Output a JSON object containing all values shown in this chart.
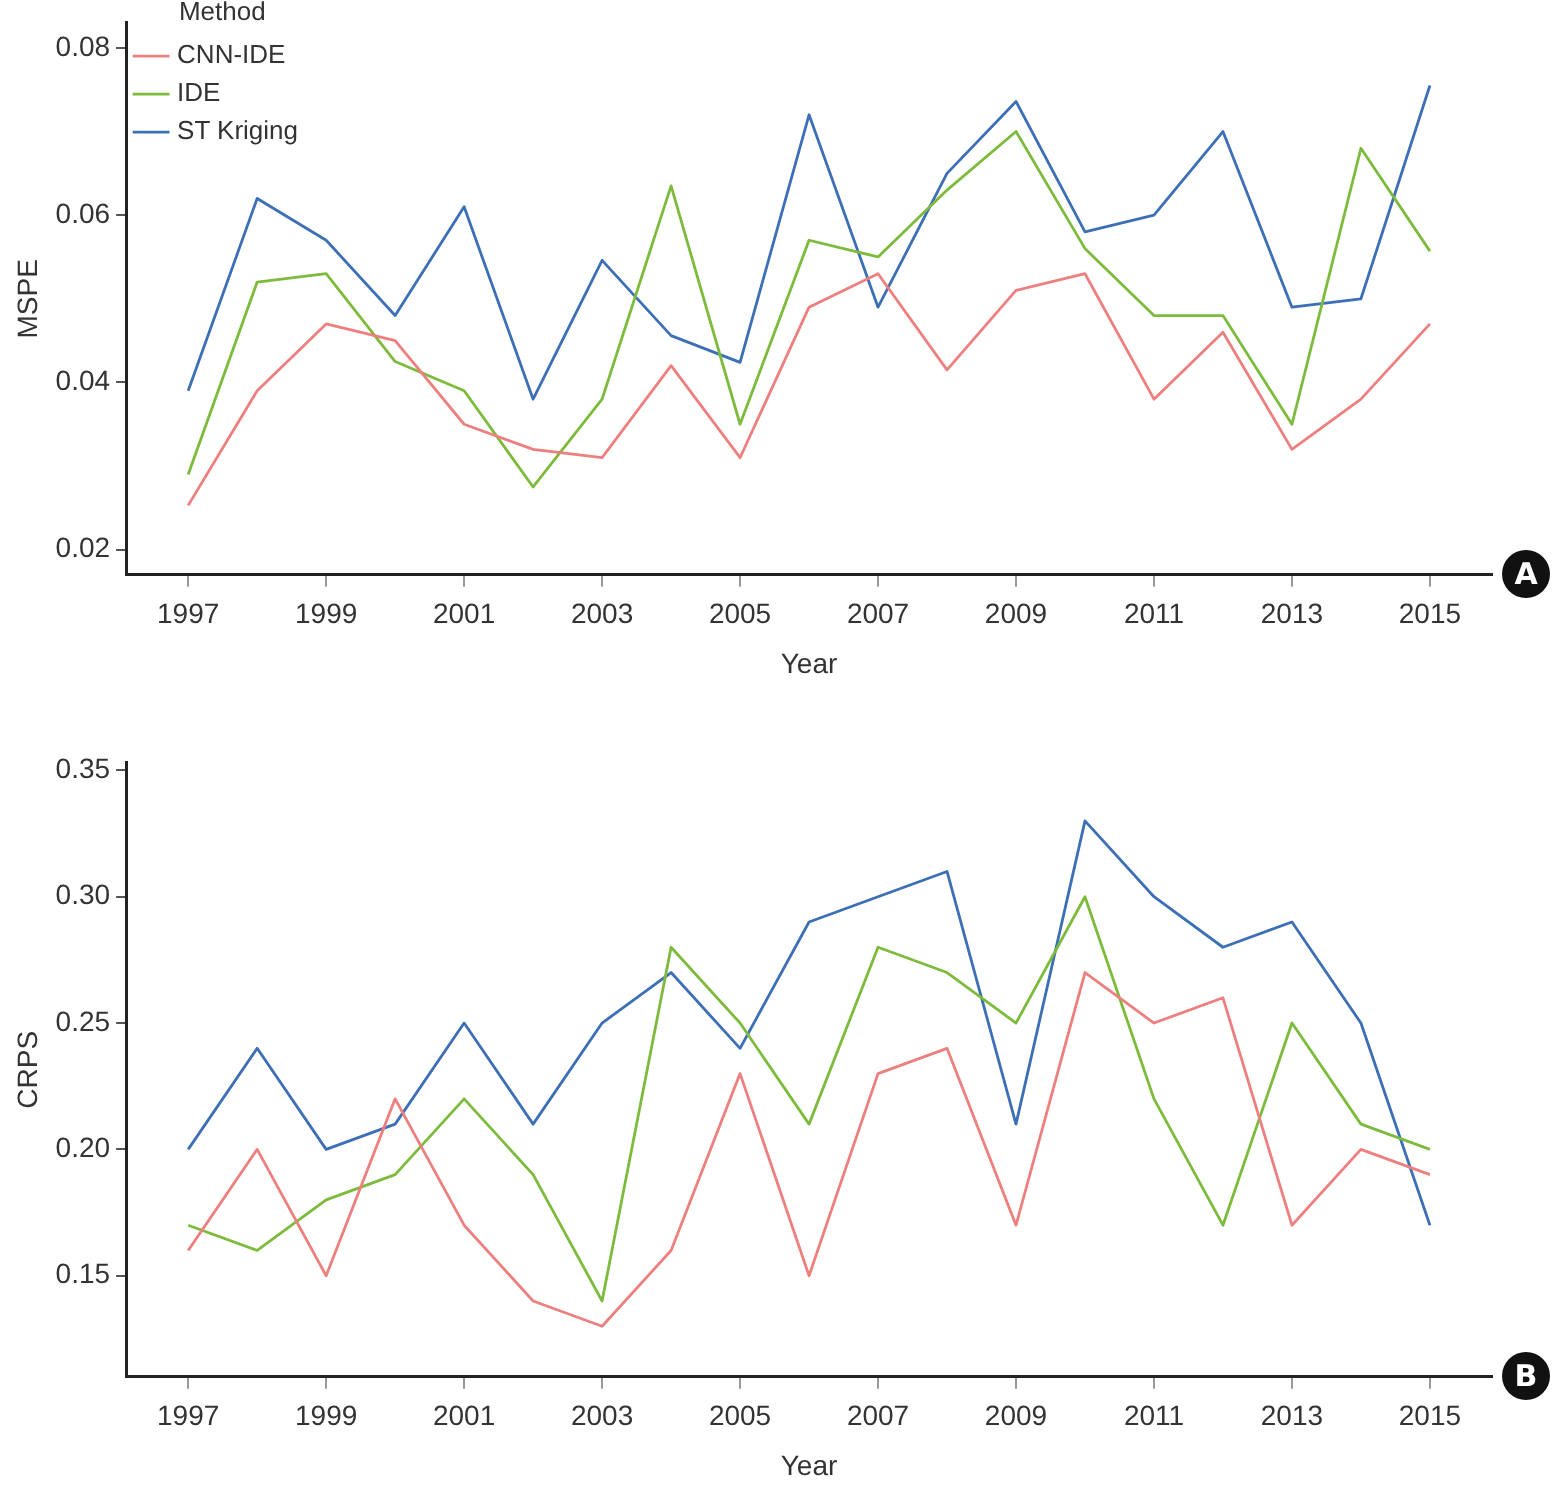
{
  "chart_data": [
    {
      "type": "line",
      "xlabel": "Year",
      "ylabel": "MSPE",
      "legend": "top left",
      "legend_title": "Method",
      "grid": false,
      "marker": "none",
      "line_style": "solid",
      "x": [
        1997,
        1998,
        1999,
        2000,
        2001,
        2002,
        2003,
        2004,
        2005,
        2006,
        2007,
        2008,
        2009,
        2010,
        2011,
        2012,
        2013,
        2014,
        2015
      ],
      "xlim": [
        1996.1,
        2015.9
      ],
      "xticks": [
        1997,
        1999,
        2001,
        2003,
        2005,
        2007,
        2009,
        2011,
        2013,
        2015
      ],
      "ylim": [
        0.017,
        0.083
      ],
      "yticks": [
        0.02,
        0.04,
        0.06,
        0.08
      ],
      "series": [
        {
          "name": "CNN-IDE",
          "color": "#ee7f7f",
          "values": [
            0.0253,
            0.039,
            0.047,
            0.045,
            0.035,
            0.032,
            0.031,
            0.042,
            0.031,
            0.049,
            0.053,
            0.0415,
            0.051,
            0.053,
            0.038,
            0.046,
            0.032,
            0.038,
            0.047
          ]
        },
        {
          "name": "IDE",
          "color": "#7dbb3c",
          "values": [
            0.029,
            0.052,
            0.053,
            0.0425,
            0.039,
            0.0275,
            0.038,
            0.0635,
            0.035,
            0.057,
            0.055,
            0.063,
            0.07,
            0.056,
            0.048,
            0.048,
            0.035,
            0.068,
            0.0557
          ]
        },
        {
          "name": "ST Kriging",
          "color": "#3d6fb6",
          "values": [
            0.039,
            0.062,
            0.057,
            0.048,
            0.061,
            0.038,
            0.0546,
            0.0456,
            0.0424,
            0.072,
            0.049,
            0.065,
            0.0736,
            0.058,
            0.06,
            0.07,
            0.049,
            0.05,
            0.0755
          ]
        }
      ],
      "annotations": [
        "A"
      ]
    },
    {
      "type": "line",
      "xlabel": "Year",
      "ylabel": "CRPS",
      "legend": false,
      "grid": false,
      "marker": "none",
      "line_style": "solid",
      "x": [
        1997,
        1998,
        1999,
        2000,
        2001,
        2002,
        2003,
        2004,
        2005,
        2006,
        2007,
        2008,
        2009,
        2010,
        2011,
        2012,
        2013,
        2014,
        2015
      ],
      "xlim": [
        1996.1,
        2015.9
      ],
      "xticks": [
        1997,
        1999,
        2001,
        2003,
        2005,
        2007,
        2009,
        2011,
        2013,
        2015
      ],
      "ylim": [
        0.11,
        0.353
      ],
      "yticks": [
        0.15,
        {
          "value": 0.2,
          "label": "0.20"
        },
        0.25,
        {
          "value": 0.3,
          "label": "0.30"
        },
        0.35
      ],
      "series": [
        {
          "color": "#ee7f7f",
          "values": [
            0.16,
            0.2,
            0.15,
            0.22,
            0.17,
            0.14,
            0.13,
            0.16,
            0.23,
            0.15,
            0.23,
            0.24,
            0.17,
            0.27,
            0.25,
            0.26,
            0.17,
            0.2,
            0.19
          ]
        },
        {
          "color": "#7dbb3c",
          "values": [
            0.17,
            0.16,
            0.18,
            0.19,
            0.22,
            0.19,
            0.14,
            0.28,
            0.25,
            0.21,
            0.28,
            0.27,
            0.25,
            0.3,
            0.22,
            0.17,
            0.25,
            0.21,
            0.2
          ]
        },
        {
          "color": "#3d6fb6",
          "values": [
            0.2,
            0.24,
            0.2,
            0.21,
            0.25,
            0.21,
            0.25,
            0.27,
            0.24,
            0.29,
            0.3,
            0.31,
            0.21,
            0.33,
            0.3,
            0.28,
            0.29,
            0.25,
            0.17
          ]
        }
      ],
      "annotations": [
        "B"
      ]
    }
  ]
}
